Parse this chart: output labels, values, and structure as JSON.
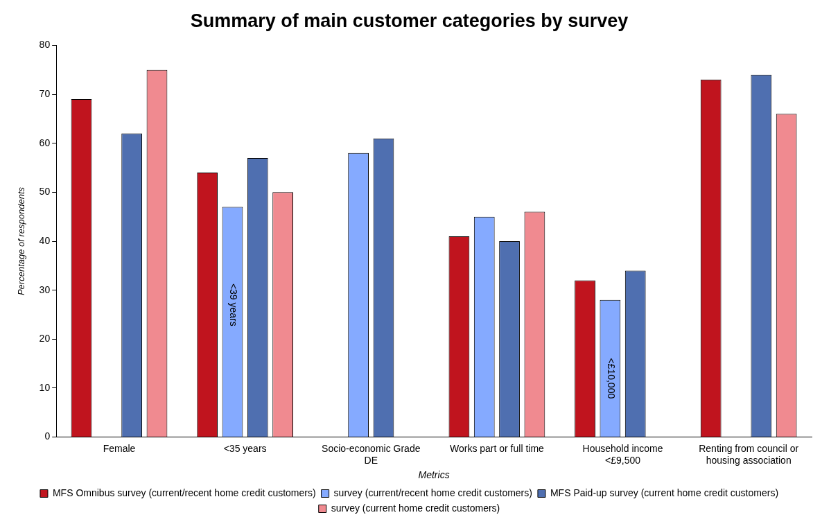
{
  "chart_data": {
    "type": "bar",
    "title": "Summary of main customer categories by survey",
    "xlabel": "Metrics",
    "ylabel": "Percentage of respondents",
    "categories": [
      "Female",
      "<35 years",
      "Socio-economic Grade DE",
      "Works part or full time",
      "Household income <£9,500",
      "Renting from council or housing association"
    ],
    "series": [
      {
        "name": "MFS Omnibus survey (current/recent home credit customers)",
        "color": "#c0141e",
        "values": [
          69,
          54,
          null,
          41,
          32,
          73
        ]
      },
      {
        "name": "survey (current/recent home credit customers)",
        "color": "#85aaff",
        "values": [
          null,
          47,
          58,
          45,
          28,
          null
        ]
      },
      {
        "name": "MFS Paid-up survey (current home credit customers)",
        "color": "#4f6fb0",
        "values": [
          62,
          57,
          61,
          40,
          34,
          74
        ]
      },
      {
        "name": "survey (current home credit customers)",
        "color": "#f08a90",
        "values": [
          75,
          50,
          null,
          46,
          null,
          66
        ]
      }
    ],
    "ylim": [
      0,
      80
    ],
    "yticks": [
      0,
      10,
      20,
      30,
      40,
      50,
      60,
      70,
      80
    ],
    "grid": false,
    "legend": "bottom",
    "annotations": [
      {
        "text": "<39 years",
        "x": "<35 years",
        "y": 27
      },
      {
        "text": "<£10,000",
        "x": "Household income <£9,500",
        "y": 12
      }
    ]
  }
}
